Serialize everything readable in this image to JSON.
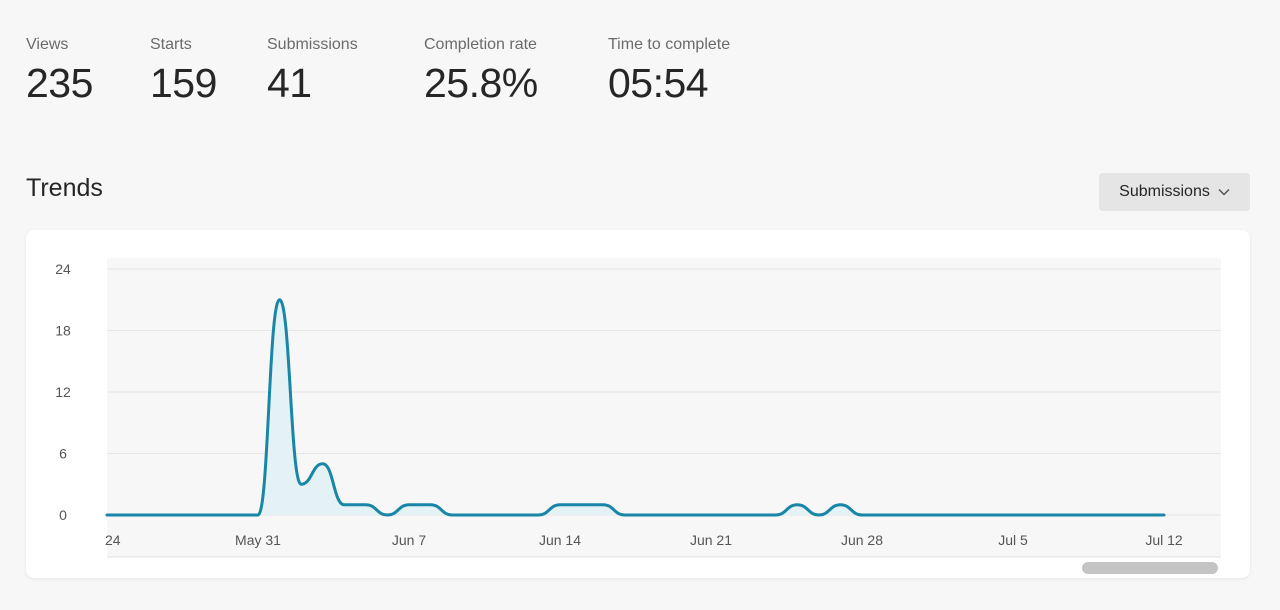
{
  "metrics": [
    {
      "label": "Views",
      "value": "235"
    },
    {
      "label": "Starts",
      "value": "159"
    },
    {
      "label": "Submissions",
      "value": "41"
    },
    {
      "label": "Completion rate",
      "value": "25.8%"
    },
    {
      "label": "Time to complete",
      "value": "05:54"
    }
  ],
  "trends": {
    "title": "Trends",
    "dropdown_label": "Submissions"
  },
  "colors": {
    "line": "#1a86a7",
    "fill": "#e4f2f6",
    "plot_bg": "#f7f7f7",
    "grid": "#e6e6e6"
  },
  "chart_data": {
    "type": "area",
    "title": "",
    "xlabel": "",
    "ylabel": "",
    "ylim": [
      0,
      24
    ],
    "yticks": [
      "0",
      "6",
      "12",
      "18",
      "24"
    ],
    "xtick_labels": [
      "24",
      "May 31",
      "Jun 7",
      "Jun 14",
      "Jun 21",
      "Jun 28",
      "Jul 5",
      "Jul 12"
    ],
    "series": [
      {
        "x": [
          "May 24",
          "May 25",
          "May 26",
          "May 27",
          "May 28",
          "May 29",
          "May 30",
          "May 31",
          "Jun 1",
          "Jun 2",
          "Jun 3",
          "Jun 4",
          "Jun 5",
          "Jun 6",
          "Jun 7",
          "Jun 8",
          "Jun 9",
          "Jun 10",
          "Jun 11",
          "Jun 12",
          "Jun 13",
          "Jun 14",
          "Jun 15",
          "Jun 16",
          "Jun 17",
          "Jun 18",
          "Jun 19",
          "Jun 20",
          "Jun 21",
          "Jun 22",
          "Jun 23",
          "Jun 24",
          "Jun 25",
          "Jun 26",
          "Jun 27",
          "Jun 28",
          "Jun 29",
          "Jun 30",
          "Jul 1",
          "Jul 2",
          "Jul 3",
          "Jul 4",
          "Jul 5",
          "Jul 6",
          "Jul 7",
          "Jul 8",
          "Jul 9",
          "Jul 10",
          "Jul 11",
          "Jul 12"
        ],
        "values": [
          0,
          0,
          0,
          0,
          0,
          0,
          0,
          0,
          21,
          3,
          5,
          1,
          1,
          0,
          1,
          1,
          0,
          0,
          0,
          0,
          0,
          1,
          1,
          1,
          0,
          0,
          0,
          0,
          0,
          0,
          0,
          0,
          1,
          0,
          1,
          0,
          0,
          0,
          0,
          0,
          0,
          0,
          0,
          0,
          0,
          0,
          0,
          0,
          0,
          0
        ]
      }
    ]
  }
}
